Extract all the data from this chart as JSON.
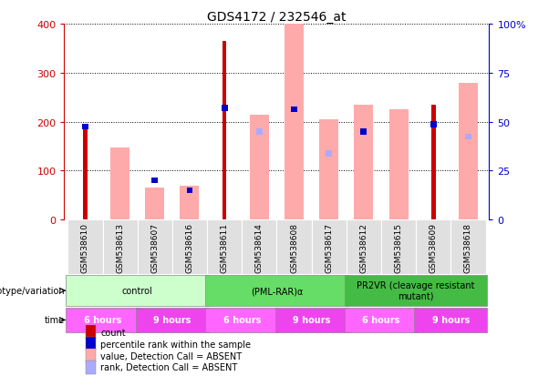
{
  "title": "GDS4172 / 232546_at",
  "samples": [
    "GSM538610",
    "GSM538613",
    "GSM538607",
    "GSM538616",
    "GSM538611",
    "GSM538614",
    "GSM538608",
    "GSM538617",
    "GSM538612",
    "GSM538615",
    "GSM538609",
    "GSM538618"
  ],
  "count_values": [
    185,
    null,
    null,
    null,
    365,
    null,
    null,
    null,
    null,
    null,
    235,
    null
  ],
  "rank_values": [
    190,
    null,
    80,
    60,
    228,
    null,
    225,
    null,
    180,
    null,
    195,
    null
  ],
  "value_absent": [
    null,
    148,
    65,
    70,
    null,
    215,
    400,
    205,
    235,
    225,
    null,
    280
  ],
  "rank_absent": [
    null,
    null,
    null,
    null,
    null,
    180,
    null,
    135,
    180,
    null,
    null,
    170
  ],
  "ylim": [
    0,
    400
  ],
  "y2lim": [
    0,
    100
  ],
  "yticks": [
    0,
    100,
    200,
    300,
    400
  ],
  "y2ticks": [
    0,
    25,
    50,
    75,
    100
  ],
  "y2ticklabels": [
    "0",
    "25",
    "50",
    "75",
    "100%"
  ],
  "genotype_groups": [
    {
      "label": "control",
      "start": 0,
      "end": 4,
      "color": "#ccffcc"
    },
    {
      "label": "(PML-RAR)α",
      "start": 4,
      "end": 8,
      "color": "#66dd66"
    },
    {
      "label": "PR2VR (cleavage resistant\nmutant)",
      "start": 8,
      "end": 12,
      "color": "#44bb44"
    }
  ],
  "time_groups": [
    {
      "label": "6 hours",
      "start": 0,
      "end": 2,
      "color": "#ff66ff"
    },
    {
      "label": "9 hours",
      "start": 2,
      "end": 4,
      "color": "#ee44ee"
    },
    {
      "label": "6 hours",
      "start": 4,
      "end": 6,
      "color": "#ff66ff"
    },
    {
      "label": "9 hours",
      "start": 6,
      "end": 8,
      "color": "#ee44ee"
    },
    {
      "label": "6 hours",
      "start": 8,
      "end": 10,
      "color": "#ff66ff"
    },
    {
      "label": "9 hours",
      "start": 10,
      "end": 12,
      "color": "#ee44ee"
    }
  ],
  "color_count": "#cc0000",
  "color_rank": "#0000cc",
  "color_value_absent": "#ffaaaa",
  "color_rank_absent": "#aaaaff",
  "legend_items": [
    {
      "label": "count",
      "color": "#cc0000"
    },
    {
      "label": "percentile rank within the sample",
      "color": "#0000cc"
    },
    {
      "label": "value, Detection Call = ABSENT",
      "color": "#ffaaaa"
    },
    {
      "label": "rank, Detection Call = ABSENT",
      "color": "#aaaaff"
    }
  ]
}
